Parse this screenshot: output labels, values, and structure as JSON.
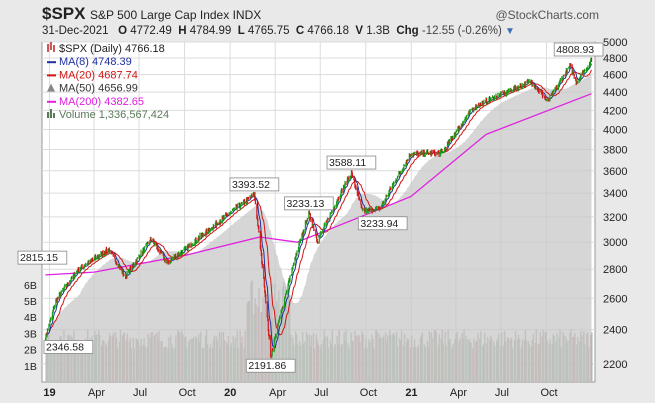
{
  "header": {
    "symbol": "$SPX",
    "name": "S&P 500 Large Cap Index",
    "exchange": "INDX",
    "brand": "@StockCharts.com",
    "date": "31-Dec-2021",
    "open_label": "O",
    "open": "4772.49",
    "high_label": "H",
    "high": "4784.99",
    "low_label": "L",
    "low": "4765.75",
    "close_label": "C",
    "close": "4766.18",
    "volume_label": "V",
    "volume": "1.3B",
    "change_label": "Chg",
    "change": "-12.55 (-0.26%)"
  },
  "legend": {
    "price": "$SPX (Daily) 4766.18",
    "ma8": "MA(8) 4748.39",
    "ma20": "MA(20) 4687.74",
    "ma50": "MA(50) 4656.99",
    "ma200": "MA(200) 4382.65",
    "volume": "Volume 1,336,567,424"
  },
  "colors": {
    "up": "#1a9c1a",
    "down": "#d21414",
    "ma8": "#1f2fa0",
    "ma20": "#d21414",
    "ma50_fill": "#c8c8c8",
    "ma200": "#e020e0",
    "vol_up": "#8da88d",
    "vol_down": "#b48a8a"
  },
  "chart_data": {
    "type": "line",
    "title": "$SPX S&P 500 Large Cap Index INDX",
    "x_ticks": [
      "19",
      "Apr",
      "Jul",
      "Oct",
      "20",
      "Apr",
      "Jul",
      "Oct",
      "21",
      "Apr",
      "Jul",
      "Oct"
    ],
    "price_axis_ticks": [
      "2200",
      "2400",
      "2600",
      "2800",
      "3000",
      "3200",
      "3400",
      "3600",
      "3800",
      "4000",
      "4200",
      "4400",
      "4600",
      "4800",
      "5000"
    ],
    "volume_axis_ticks": [
      "1B",
      "2B",
      "3B",
      "4B",
      "5B",
      "6B"
    ],
    "ylim": [
      2100,
      5000
    ],
    "annotations": [
      {
        "label": "2815.15",
        "x": "2018-12-31",
        "y": 2815.15
      },
      {
        "label": "2346.58",
        "x": "2018-12-24",
        "y": 2346.58
      },
      {
        "label": "3393.52",
        "x": "2020-02-19",
        "y": 3393.52
      },
      {
        "label": "2191.86",
        "x": "2020-03-23",
        "y": 2191.86
      },
      {
        "label": "3233.13",
        "x": "2020-06-08",
        "y": 3233.13
      },
      {
        "label": "3588.11",
        "x": "2020-09-02",
        "y": 3588.11
      },
      {
        "label": "3233.94",
        "x": "2020-09-24",
        "y": 3233.94
      },
      {
        "label": "4808.93",
        "x": "2021-12-31",
        "y": 4808.93
      }
    ],
    "series": [
      {
        "name": "$SPX (Daily)",
        "x": [
          "2018-12-24",
          "2019-01-15",
          "2019-03-01",
          "2019-05-01",
          "2019-06-03",
          "2019-07-26",
          "2019-08-26",
          "2019-10-01",
          "2019-12-31",
          "2020-02-19",
          "2020-03-23",
          "2020-06-08",
          "2020-06-26",
          "2020-09-02",
          "2020-09-24",
          "2020-10-30",
          "2020-12-31",
          "2021-03-04",
          "2021-05-07",
          "2021-08-31",
          "2021-10-04",
          "2021-11-18",
          "2021-12-01",
          "2021-12-31"
        ],
        "y": [
          2351,
          2590,
          2800,
          2945,
          2744,
          3025,
          2847,
          2940,
          3230,
          3386,
          2237,
          3232,
          3010,
          3580,
          3246,
          3270,
          3756,
          3768,
          4232,
          4523,
          4300,
          4704,
          4513,
          4766
        ]
      },
      {
        "name": "MA(200)",
        "x": [
          "2018-12-24",
          "2019-04-01",
          "2019-10-01",
          "2020-03-01",
          "2020-05-15",
          "2020-08-01",
          "2020-12-31",
          "2021-06-01",
          "2021-12-31"
        ],
        "y": [
          2760,
          2780,
          2900,
          3040,
          3000,
          3120,
          3370,
          3950,
          4382.65
        ]
      }
    ]
  }
}
